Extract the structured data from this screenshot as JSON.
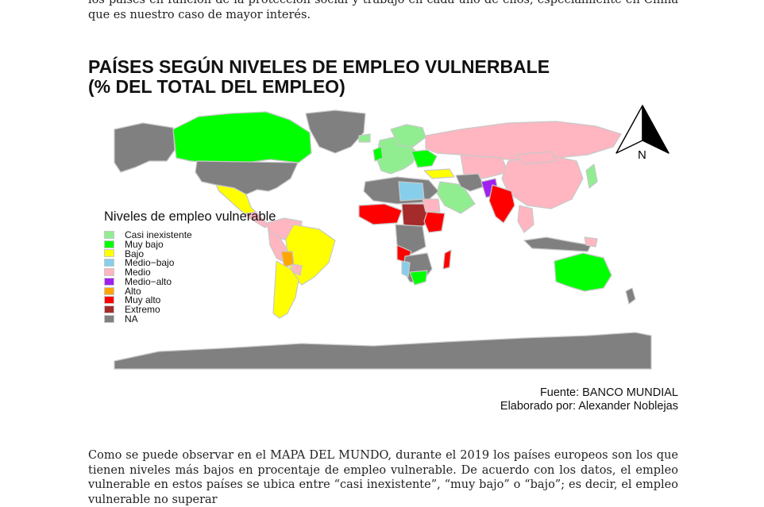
{
  "document": {
    "top_paragraph": "los países en función de la protección social y trabajo en cada uno de ellos, especialmente en China que es nuestro caso de mayor interés.",
    "bottom_paragraph": "Como se puede observar en el MAPA DEL MUNDO, durante el 2019 los países europeos son los que tienen niveles más bajos en procentaje de empleo vulnerable. De acuerdo con los datos, el empleo vulnerable en estos países se ubica entre “casi inexistente”, “muy bajo” o “bajo”; es decir, el empleo vulnerable no superar"
  },
  "map": {
    "title_line1": "PAÍSES SEGÚN NIVELES DE EMPLEO VULNERBALE",
    "title_line2": "(% DEL TOTAL DEL EMPLEO)",
    "north_label": "N",
    "legend": {
      "title": "Niveles de empleo vulnerable",
      "items": [
        {
          "label": "Casi inexistente",
          "color": "#90ee90"
        },
        {
          "label": "Muy bajo",
          "color": "#00ff00"
        },
        {
          "label": "Bajo",
          "color": "#ffff00"
        },
        {
          "label": "Medio−bajo",
          "color": "#87ceeb"
        },
        {
          "label": "Medio",
          "color": "#ffb6c1"
        },
        {
          "label": "Medio−alto",
          "color": "#a020f0"
        },
        {
          "label": "Alto",
          "color": "#ffa500"
        },
        {
          "label": "Muy alto",
          "color": "#ff0000"
        },
        {
          "label": "Extremo",
          "color": "#a52a2a"
        },
        {
          "label": "NA",
          "color": "#808080"
        }
      ]
    },
    "source": "Fuente: BANCO MUNDIAL",
    "author": "Elaborado por: Alexander Noblejas",
    "colors": {
      "ocean": "#ffffff",
      "border": "#c8c8c8"
    }
  }
}
